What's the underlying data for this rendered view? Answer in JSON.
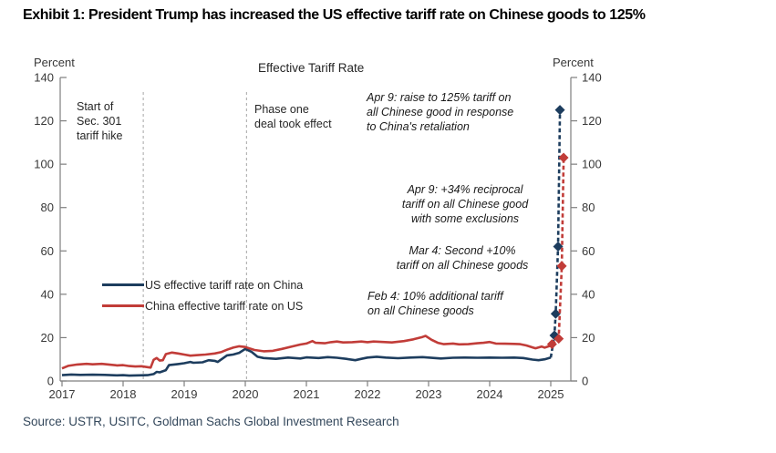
{
  "exhibit": {
    "title": "Exhibit 1: President Trump has increased the US effective tariff rate on Chinese goods to 125%",
    "source": "Source: USTR, USITC, Goldman Sachs Global Investment Research"
  },
  "chart_data": {
    "type": "line",
    "title": "Effective Tariff Rate",
    "unit_label": "Percent",
    "ylim": [
      0,
      140
    ],
    "yticks": [
      0,
      20,
      40,
      60,
      80,
      100,
      120,
      140
    ],
    "xticks": [
      2017,
      2018,
      2019,
      2020,
      2021,
      2022,
      2023,
      2024,
      2025
    ],
    "grid": false,
    "legend_position": "center-left",
    "axis_color": "#7f7f7f",
    "reference_lines": [
      {
        "x": 2018.33,
        "label": "Start of\nSec. 301\ntariff hike"
      },
      {
        "x": 2020.02,
        "label": "Phase one\ndeal took effect"
      }
    ],
    "annotations": [
      {
        "text": "Apr 9: raise to 125% tariff on\nall Chinese good in response\nto China's retaliation"
      },
      {
        "text": "Apr 9: +34% reciprocal\ntariff on all Chinese good\nwith some exclusions"
      },
      {
        "text": "Mar 4: Second +10%\ntariff on all Chinese goods"
      },
      {
        "text": "Feb 4: 10% additional tariff\non all Chinese goods"
      }
    ],
    "series": [
      {
        "name": "US effective tariff rate on China",
        "color": "#1d3d5e",
        "solid": [
          [
            2017.0,
            2.7
          ],
          [
            2017.15,
            3.0
          ],
          [
            2017.3,
            2.8
          ],
          [
            2017.5,
            2.9
          ],
          [
            2017.7,
            2.8
          ],
          [
            2017.9,
            2.6
          ],
          [
            2018.0,
            2.7
          ],
          [
            2018.1,
            2.5
          ],
          [
            2018.25,
            2.6
          ],
          [
            2018.4,
            2.7
          ],
          [
            2018.5,
            3.2
          ],
          [
            2018.55,
            4.2
          ],
          [
            2018.6,
            4.0
          ],
          [
            2018.7,
            5.0
          ],
          [
            2018.75,
            7.3
          ],
          [
            2018.9,
            7.8
          ],
          [
            2019.0,
            8.2
          ],
          [
            2019.1,
            8.8
          ],
          [
            2019.15,
            8.4
          ],
          [
            2019.3,
            8.6
          ],
          [
            2019.4,
            9.6
          ],
          [
            2019.5,
            9.3
          ],
          [
            2019.55,
            8.8
          ],
          [
            2019.7,
            11.8
          ],
          [
            2019.8,
            12.2
          ],
          [
            2019.9,
            13.0
          ],
          [
            2020.0,
            14.8
          ],
          [
            2020.1,
            13.5
          ],
          [
            2020.2,
            11.2
          ],
          [
            2020.3,
            10.6
          ],
          [
            2020.5,
            10.2
          ],
          [
            2020.7,
            10.8
          ],
          [
            2020.9,
            10.4
          ],
          [
            2021.0,
            10.9
          ],
          [
            2021.2,
            10.6
          ],
          [
            2021.35,
            11.0
          ],
          [
            2021.5,
            10.7
          ],
          [
            2021.65,
            10.2
          ],
          [
            2021.8,
            9.6
          ],
          [
            2021.9,
            10.2
          ],
          [
            2022.0,
            10.8
          ],
          [
            2022.15,
            11.2
          ],
          [
            2022.3,
            10.8
          ],
          [
            2022.5,
            10.5
          ],
          [
            2022.7,
            10.8
          ],
          [
            2022.9,
            11.0
          ],
          [
            2023.0,
            10.8
          ],
          [
            2023.2,
            10.4
          ],
          [
            2023.4,
            10.7
          ],
          [
            2023.6,
            10.8
          ],
          [
            2023.8,
            10.7
          ],
          [
            2024.0,
            10.8
          ],
          [
            2024.2,
            10.7
          ],
          [
            2024.4,
            10.8
          ],
          [
            2024.55,
            10.6
          ],
          [
            2024.7,
            9.9
          ],
          [
            2024.8,
            9.6
          ],
          [
            2024.9,
            10.0
          ],
          [
            2025.0,
            10.8
          ]
        ],
        "dashed": [
          [
            2025.0,
            10.8
          ],
          [
            2025.06,
            21
          ],
          [
            2025.08,
            31
          ],
          [
            2025.12,
            62
          ],
          [
            2025.15,
            125
          ]
        ],
        "markers": [
          [
            2025.06,
            21
          ],
          [
            2025.08,
            31
          ],
          [
            2025.12,
            62
          ],
          [
            2025.15,
            125
          ]
        ]
      },
      {
        "name": "China effective tariff rate on US",
        "color": "#c13c38",
        "solid": [
          [
            2017.0,
            5.8
          ],
          [
            2017.1,
            7.0
          ],
          [
            2017.25,
            7.6
          ],
          [
            2017.4,
            7.9
          ],
          [
            2017.5,
            7.7
          ],
          [
            2017.65,
            7.9
          ],
          [
            2017.8,
            7.5
          ],
          [
            2017.9,
            7.2
          ],
          [
            2018.0,
            7.3
          ],
          [
            2018.1,
            6.9
          ],
          [
            2018.2,
            6.7
          ],
          [
            2018.3,
            6.8
          ],
          [
            2018.4,
            6.4
          ],
          [
            2018.45,
            6.2
          ],
          [
            2018.5,
            9.8
          ],
          [
            2018.55,
            10.6
          ],
          [
            2018.6,
            9.4
          ],
          [
            2018.65,
            9.6
          ],
          [
            2018.7,
            12.4
          ],
          [
            2018.8,
            13.1
          ],
          [
            2018.9,
            12.7
          ],
          [
            2019.0,
            12.2
          ],
          [
            2019.1,
            11.7
          ],
          [
            2019.2,
            11.9
          ],
          [
            2019.35,
            12.2
          ],
          [
            2019.5,
            12.7
          ],
          [
            2019.6,
            13.3
          ],
          [
            2019.7,
            14.4
          ],
          [
            2019.8,
            15.4
          ],
          [
            2019.9,
            16.0
          ],
          [
            2020.0,
            15.7
          ],
          [
            2020.05,
            15.2
          ],
          [
            2020.15,
            14.3
          ],
          [
            2020.3,
            13.7
          ],
          [
            2020.45,
            13.9
          ],
          [
            2020.6,
            14.8
          ],
          [
            2020.75,
            15.8
          ],
          [
            2020.9,
            16.8
          ],
          [
            2021.0,
            17.3
          ],
          [
            2021.1,
            18.4
          ],
          [
            2021.15,
            17.6
          ],
          [
            2021.3,
            17.4
          ],
          [
            2021.4,
            17.9
          ],
          [
            2021.5,
            18.2
          ],
          [
            2021.6,
            17.8
          ],
          [
            2021.75,
            17.9
          ],
          [
            2021.9,
            18.2
          ],
          [
            2022.0,
            17.9
          ],
          [
            2022.1,
            18.2
          ],
          [
            2022.25,
            18.0
          ],
          [
            2022.4,
            17.8
          ],
          [
            2022.5,
            18.1
          ],
          [
            2022.6,
            18.4
          ],
          [
            2022.75,
            19.2
          ],
          [
            2022.9,
            20.3
          ],
          [
            2022.95,
            20.8
          ],
          [
            2023.05,
            19.0
          ],
          [
            2023.15,
            17.6
          ],
          [
            2023.25,
            17.0
          ],
          [
            2023.4,
            17.3
          ],
          [
            2023.5,
            16.9
          ],
          [
            2023.65,
            17.0
          ],
          [
            2023.8,
            17.4
          ],
          [
            2023.9,
            17.6
          ],
          [
            2024.0,
            18.0
          ],
          [
            2024.1,
            17.3
          ],
          [
            2024.25,
            17.2
          ],
          [
            2024.4,
            17.1
          ],
          [
            2024.5,
            17.0
          ],
          [
            2024.6,
            16.4
          ],
          [
            2024.7,
            15.5
          ],
          [
            2024.75,
            15.1
          ],
          [
            2024.85,
            15.9
          ],
          [
            2024.9,
            15.4
          ],
          [
            2025.0,
            16.3
          ],
          [
            2025.02,
            17.0
          ]
        ],
        "dashed": [
          [
            2025.02,
            17.0
          ],
          [
            2025.13,
            19.5
          ],
          [
            2025.18,
            53
          ],
          [
            2025.21,
            103
          ]
        ],
        "markers": [
          [
            2025.02,
            17.0
          ],
          [
            2025.13,
            19.5
          ],
          [
            2025.18,
            53
          ],
          [
            2025.21,
            103
          ]
        ]
      }
    ]
  }
}
